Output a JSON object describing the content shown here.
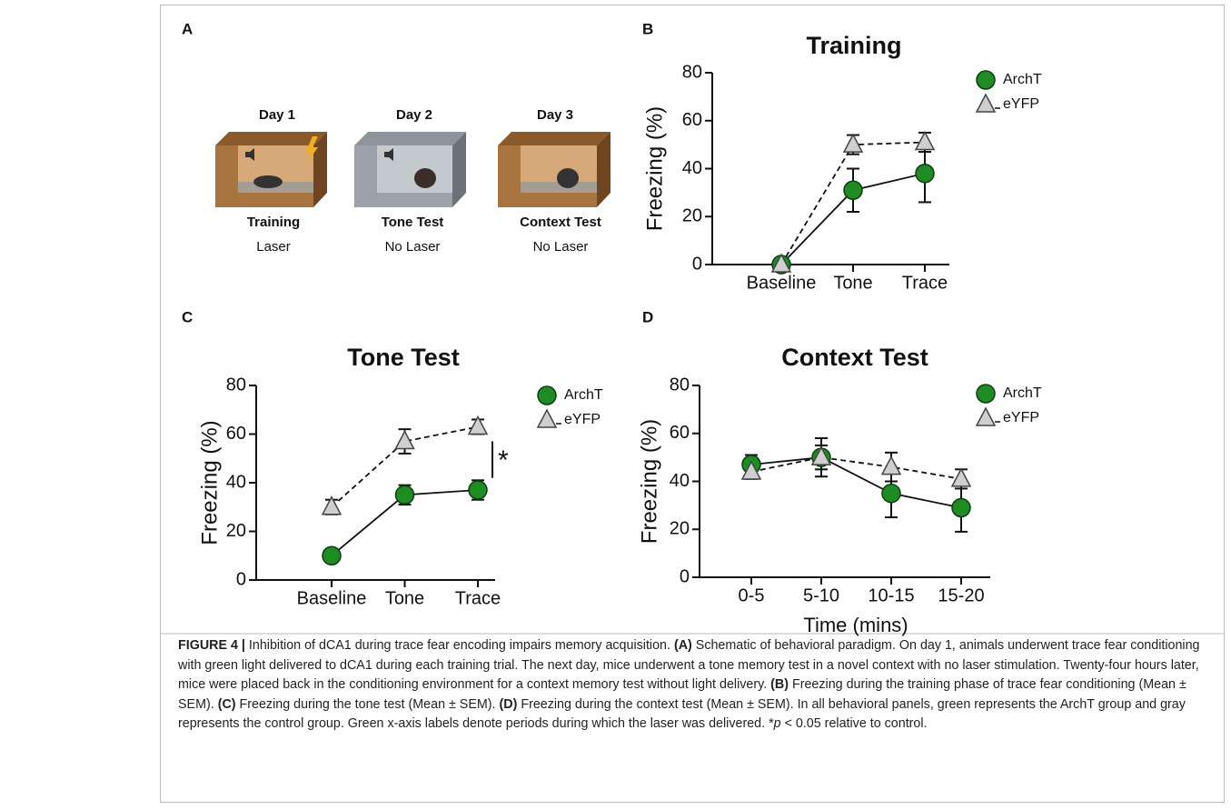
{
  "panels": [
    "A",
    "B",
    "C",
    "D"
  ],
  "schematic": {
    "days": [
      "Day 1",
      "Day 2",
      "Day 3"
    ],
    "phases": [
      "Training",
      "Tone Test",
      "Context Test"
    ],
    "conditions": [
      "Laser",
      "No Laser",
      "No Laser"
    ],
    "condition_colors": [
      "#1f8b24",
      "#111111",
      "#111111"
    ]
  },
  "chart_data": [
    {
      "type": "line",
      "title": "Training",
      "ylabel": "Freezing (%)",
      "categories": [
        "Baseline",
        "Tone",
        "Trace"
      ],
      "category_colors": [
        "#111111",
        "#1f8b24",
        "#1f8b24"
      ],
      "ylim": [
        0,
        80
      ],
      "yticks": [
        0,
        20,
        40,
        60,
        80
      ],
      "legend": "upper right",
      "series": [
        {
          "name": "ArchT",
          "color": "#1f8b24",
          "marker": "circle",
          "dashed": false,
          "values": [
            0,
            31,
            38
          ],
          "errors": [
            0,
            9,
            12
          ]
        },
        {
          "name": "eYFP",
          "color": "#cfcfcf",
          "marker": "triangle",
          "dashed": true,
          "values": [
            0,
            50,
            51
          ],
          "errors": [
            0,
            4,
            4
          ]
        }
      ]
    },
    {
      "type": "line",
      "title": "Tone Test",
      "ylabel": "Freezing (%)",
      "categories": [
        "Baseline",
        "Tone",
        "Trace"
      ],
      "category_colors": [
        "#111111",
        "#111111",
        "#111111"
      ],
      "ylim": [
        0,
        80
      ],
      "yticks": [
        0,
        20,
        40,
        60,
        80
      ],
      "legend": "upper right",
      "annotation": "*",
      "series": [
        {
          "name": "ArchT",
          "color": "#1f8b24",
          "marker": "circle",
          "dashed": false,
          "values": [
            10,
            35,
            37
          ],
          "errors": [
            1,
            4,
            4
          ]
        },
        {
          "name": "eYFP",
          "color": "#cfcfcf",
          "marker": "triangle",
          "dashed": true,
          "values": [
            30,
            57,
            63
          ],
          "errors": [
            3,
            5,
            3
          ]
        }
      ]
    },
    {
      "type": "line",
      "title": "Context Test",
      "ylabel": "Freezing (%)",
      "xlabel": "Time (mins)",
      "categories": [
        "0-5",
        "5-10",
        "10-15",
        "15-20"
      ],
      "category_colors": [
        "#111111",
        "#111111",
        "#111111",
        "#111111"
      ],
      "ylim": [
        0,
        80
      ],
      "yticks": [
        0,
        20,
        40,
        60,
        80
      ],
      "legend": "upper right",
      "series": [
        {
          "name": "ArchT",
          "color": "#1f8b24",
          "marker": "circle",
          "dashed": false,
          "values": [
            47,
            50,
            35,
            29
          ],
          "errors": [
            4,
            8,
            10,
            10
          ]
        },
        {
          "name": "eYFP",
          "color": "#cfcfcf",
          "marker": "triangle",
          "dashed": true,
          "values": [
            44,
            50,
            46,
            41
          ],
          "errors": [
            3,
            5,
            6,
            4
          ]
        }
      ]
    }
  ],
  "caption": {
    "runs": [
      "FIGURE 4 |",
      " Inhibition of dCA1 during trace fear encoding impairs memory acquisition. ",
      "(A)",
      " Schematic of behavioral paradigm. On day 1, animals underwent trace fear conditioning with green light delivered to dCA1 during each training trial. The next day, mice underwent a tone memory test in a novel context with no laser stimulation. Twenty-four hours later, mice were placed back in the conditioning environment for a context memory test without light delivery. ",
      "(B)",
      " Freezing during the training phase of trace fear conditioning (Mean ± SEM). ",
      "(C)",
      " Freezing during the tone test (Mean ± SEM). ",
      "(D)",
      " Freezing during the context test (Mean ± SEM). In all behavioral panels, green represents the ArchT group and gray represents the control group. Green x-axis labels denote periods during which the laser was delivered. *",
      "p",
      " < 0.05 relative to control."
    ]
  }
}
